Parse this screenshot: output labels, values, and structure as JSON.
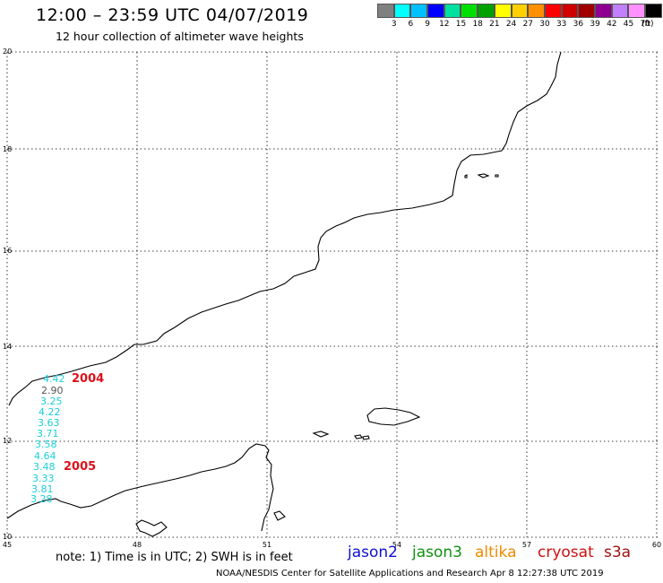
{
  "header": {
    "title": "12:00 – 23:59 UTC 04/07/2019",
    "subtitle": "12 hour collection of altimeter wave heights"
  },
  "colorbar": {
    "colors": [
      "#808080",
      "#00ffff",
      "#00c0ff",
      "#0000ff",
      "#00e0a0",
      "#00e000",
      "#00a000",
      "#ffff00",
      "#ffd000",
      "#ff9000",
      "#ff0000",
      "#d00000",
      "#a00000",
      "#900090",
      "#c080ff",
      "#ff90ff",
      "#000000"
    ],
    "labels": [
      "3",
      "6",
      "9",
      "12",
      "15",
      "18",
      "21",
      "24",
      "27",
      "30",
      "33",
      "36",
      "39",
      "42",
      "45",
      "70"
    ],
    "unit": "(ft)"
  },
  "axes": {
    "lat_labels": [
      "20",
      "18",
      "16",
      "14",
      "12",
      "10"
    ],
    "lon_labels": [
      "45",
      "48",
      "51",
      "54",
      "57",
      "60"
    ]
  },
  "observations": {
    "swh": [
      "4.42",
      "2.90",
      "3.25",
      "4.22",
      "3.63",
      "3.71",
      "3.58",
      "4.64",
      "3.48",
      "3.33",
      "3.81",
      "3.28"
    ],
    "years": [
      "2004",
      "2005"
    ]
  },
  "legend": {
    "note": "note: 1) Time is in UTC; 2) SWH is in feet",
    "satellites": [
      {
        "name": "jason2",
        "color": "#1010d0"
      },
      {
        "name": "jason3",
        "color": "#109010"
      },
      {
        "name": "altika",
        "color": "#f08a00"
      },
      {
        "name": "cryosat",
        "color": "#d01010"
      },
      {
        "name": "s3a",
        "color": "#a01010"
      }
    ]
  },
  "footer": "NOAA/NESDIS Center for Satellite Applications and Research    Apr  8 12:27:38 UTC 2019"
}
